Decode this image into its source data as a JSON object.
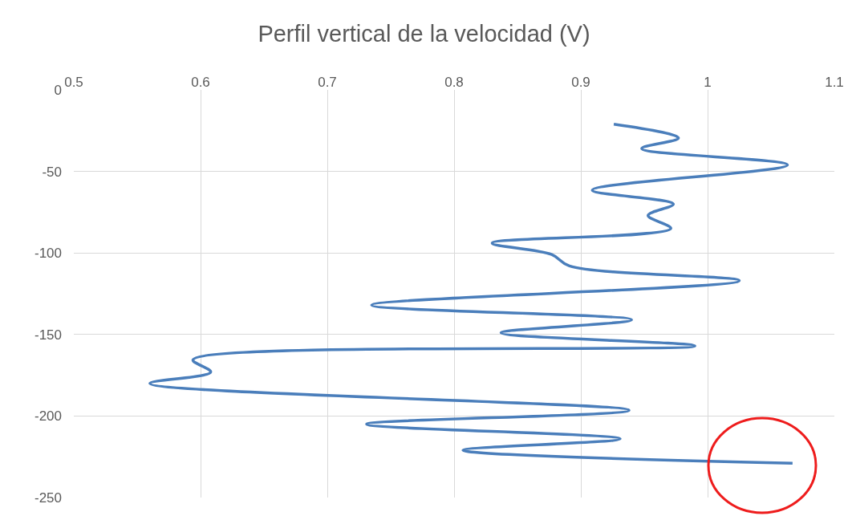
{
  "chart_data": {
    "type": "line",
    "title": "Perfil vertical de la velocidad (V)",
    "series": [
      {
        "color": "#4a7ebb",
        "x": [
          0.926,
          0.977,
          0.948,
          1.063,
          0.909,
          0.973,
          0.953,
          0.971,
          0.83,
          0.877,
          0.891,
          1.025,
          0.735,
          0.94,
          0.837,
          0.99,
          0.594,
          0.608,
          0.56,
          0.938,
          0.731,
          0.931,
          0.807,
          1.067
        ],
        "values": [
          -21,
          -29.5,
          -36,
          -46,
          -61.5,
          -70,
          -77,
          -85,
          -94,
          -101,
          -108,
          -117,
          -132,
          -141,
          -149,
          -157,
          -165.5,
          -173,
          -180,
          -196.5,
          -205,
          -214,
          -221,
          -229
        ]
      }
    ],
    "xlim": [
      0.5,
      1.1
    ],
    "xticks": [
      0.5,
      0.6,
      0.7,
      0.8,
      0.9,
      1,
      1.1
    ],
    "ylim": [
      -250,
      0
    ],
    "yticks": [
      0,
      -50,
      -100,
      -150,
      -200,
      -250
    ],
    "grid": true,
    "marker": "none",
    "line_style": "solid"
  }
}
